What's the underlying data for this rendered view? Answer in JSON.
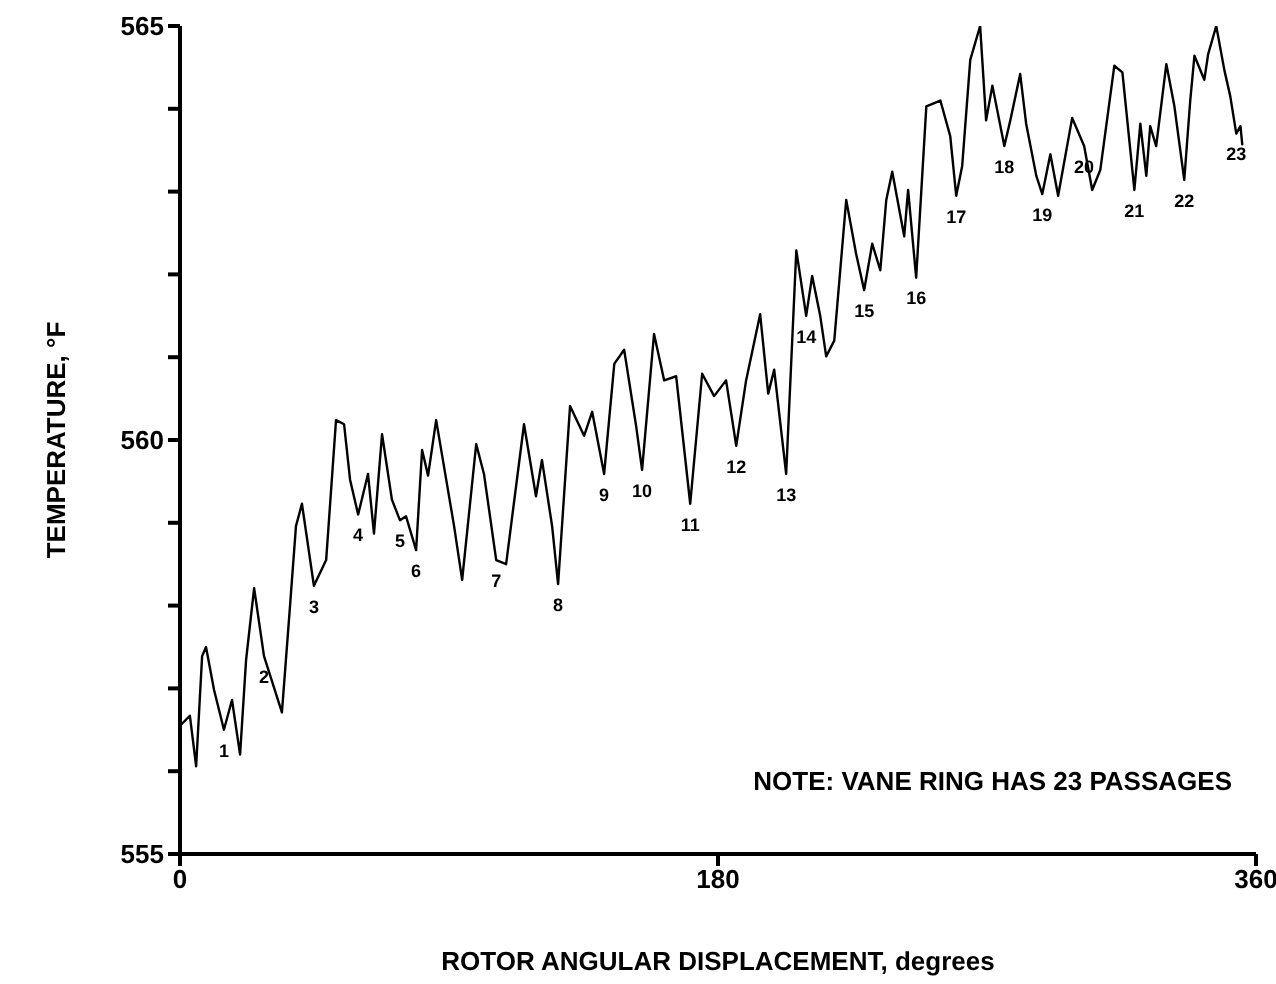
{
  "chart_data": {
    "type": "line",
    "xlabel": "ROTOR ANGULAR DISPLACEMENT, degrees",
    "ylabel": "TEMPERATURE, °F",
    "xlim": [
      0,
      360
    ],
    "xticks": [
      0,
      180,
      360
    ],
    "ylim": [
      555,
      565
    ],
    "yticks": [
      555,
      {
        "value": 556,
        "label": null
      },
      {
        "value": 557,
        "label": null
      },
      {
        "value": 558,
        "label": null
      },
      {
        "value": 559,
        "label": null
      },
      560,
      {
        "value": 561,
        "label": null
      },
      {
        "value": 562,
        "label": null
      },
      {
        "value": 563,
        "label": null
      },
      {
        "value": 564,
        "label": null
      },
      565
    ],
    "grid": false,
    "legend": false,
    "marker": "none",
    "line_style": "solid",
    "series": [
      {
        "color": "#000000",
        "x": [
          0,
          3.3,
          5.4,
          7.4,
          8.7,
          11.4,
          14.7,
          17.4,
          20.1,
          22.1,
          24.8,
          28.1,
          34.1,
          36.8,
          38.8,
          40.8,
          44.8,
          48.9,
          52.2,
          54.9,
          56.9,
          59.6,
          62.9,
          64.9,
          67.6,
          70.9,
          73.6,
          75.6,
          79.0,
          81.0,
          83.0,
          85.7,
          91.7,
          94.4,
          99.1,
          101.7,
          105.8,
          109.1,
          115.1,
          119.1,
          121.1,
          124.5,
          126.5,
          130.5,
          135.2,
          137.9,
          141.9,
          145.3,
          148.6,
          152.6,
          154.6,
          158.6,
          162.0,
          166.0,
          170.7,
          174.7,
          178.7,
          182.7,
          186.1,
          189.4,
          194.1,
          196.8,
          198.8,
          202.8,
          206.2,
          209.5,
          211.5,
          214.2,
          216.2,
          218.9,
          222.9,
          226.2,
          228.9,
          231.6,
          234.3,
          236.3,
          238.3,
          242.3,
          243.6,
          246.3,
          249.7,
          254.4,
          257.7,
          259.7,
          261.7,
          264.4,
          267.7,
          269.7,
          271.8,
          275.8,
          277.8,
          281.1,
          283.1,
          286.5,
          288.5,
          291.2,
          293.8,
          298.5,
          302.5,
          305.2,
          307.9,
          312.6,
          315.3,
          319.3,
          321.3,
          323.3,
          324.6,
          326.6,
          330.0,
          332.7,
          336.0,
          338.0,
          339.4,
          342.7,
          344.0,
          346.7,
          349.4,
          351.4,
          353.4,
          354.8,
          355.4
        ],
        "values": [
          556.55,
          556.67,
          556.06,
          557.39,
          557.5,
          556.98,
          556.5,
          556.86,
          556.2,
          557.34,
          558.21,
          557.39,
          556.71,
          557.99,
          558.96,
          559.23,
          558.24,
          558.55,
          560.24,
          560.19,
          559.52,
          559.1,
          559.59,
          558.87,
          560.07,
          559.28,
          559.03,
          559.08,
          558.67,
          559.88,
          559.57,
          560.24,
          558.96,
          558.31,
          559.95,
          559.59,
          558.55,
          558.5,
          560.19,
          559.32,
          559.76,
          558.96,
          558.26,
          560.41,
          560.05,
          560.34,
          559.59,
          560.92,
          561.09,
          560.17,
          559.64,
          561.28,
          560.72,
          560.77,
          559.23,
          560.8,
          560.53,
          560.72,
          559.93,
          560.72,
          561.52,
          560.56,
          560.85,
          559.59,
          562.29,
          561.5,
          561.98,
          561.5,
          561.01,
          561.2,
          562.9,
          562.25,
          561.81,
          562.37,
          562.05,
          562.9,
          563.24,
          562.46,
          563.02,
          561.96,
          564.03,
          564.1,
          563.67,
          562.95,
          563.31,
          564.59,
          565.0,
          563.86,
          564.28,
          563.55,
          563.86,
          564.42,
          563.82,
          563.19,
          562.97,
          563.45,
          562.95,
          563.89,
          563.55,
          563.02,
          563.26,
          564.52,
          564.44,
          563.02,
          563.82,
          563.19,
          563.79,
          563.55,
          564.54,
          564.03,
          563.14,
          564.1,
          564.64,
          564.35,
          564.66,
          565.0,
          564.47,
          564.15,
          563.7,
          563.79,
          563.57
        ]
      }
    ],
    "annotations": [
      {
        "text": "1",
        "x": 14.7,
        "y": 556.5
      },
      {
        "text": "2",
        "x": 28.1,
        "y": 557.39
      },
      {
        "text": "3",
        "x": 44.8,
        "y": 558.24
      },
      {
        "text": "4",
        "x": 59.6,
        "y": 559.1
      },
      {
        "text": "5",
        "x": 73.6,
        "y": 559.03
      },
      {
        "text": "6",
        "x": 79.0,
        "y": 558.67
      },
      {
        "text": "7",
        "x": 105.8,
        "y": 558.55
      },
      {
        "text": "8",
        "x": 126.5,
        "y": 558.26
      },
      {
        "text": "9",
        "x": 141.9,
        "y": 559.59
      },
      {
        "text": "10",
        "x": 154.6,
        "y": 559.64
      },
      {
        "text": "11",
        "x": 170.7,
        "y": 559.23
      },
      {
        "text": "12",
        "x": 186.1,
        "y": 559.93
      },
      {
        "text": "13",
        "x": 202.8,
        "y": 559.59
      },
      {
        "text": "14",
        "x": 209.5,
        "y": 561.5
      },
      {
        "text": "15",
        "x": 228.9,
        "y": 561.81
      },
      {
        "text": "16",
        "x": 246.3,
        "y": 561.96
      },
      {
        "text": "17",
        "x": 259.7,
        "y": 562.95
      },
      {
        "text": "18",
        "x": 275.8,
        "y": 563.55
      },
      {
        "text": "19",
        "x": 288.5,
        "y": 562.97
      },
      {
        "text": "20",
        "x": 302.5,
        "y": 563.55
      },
      {
        "text": "21",
        "x": 319.3,
        "y": 563.02
      },
      {
        "text": "22",
        "x": 336.0,
        "y": 563.14
      },
      {
        "text": "23",
        "x": 353.4,
        "y": 563.7
      },
      "NOTE: VANE RING HAS 23 PASSAGES"
    ]
  }
}
